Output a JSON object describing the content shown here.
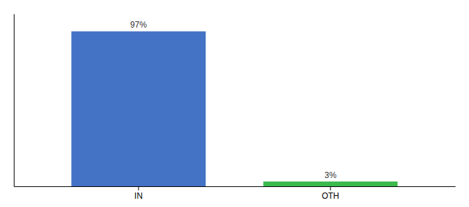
{
  "chart_data": {
    "type": "bar",
    "categories": [
      "IN",
      "OTH"
    ],
    "values": [
      97,
      3
    ],
    "value_labels": [
      "97%",
      "3%"
    ],
    "data_labels": true,
    "colors": [
      "#4472c4",
      "#3dba4e"
    ],
    "ylim": [
      0,
      108
    ],
    "tick_labels": "x"
  }
}
